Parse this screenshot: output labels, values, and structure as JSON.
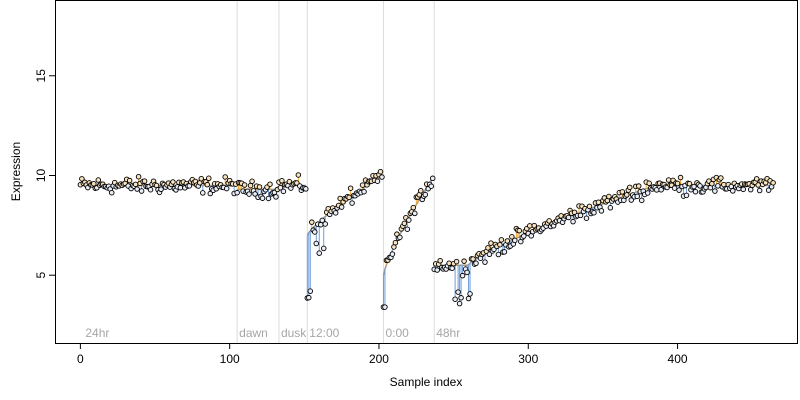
{
  "chart_data": {
    "type": "scatter",
    "xlabel": "Sample index",
    "ylabel": "Expression",
    "xlim": [
      -17,
      480
    ],
    "ylim": [
      1.6,
      18.8
    ],
    "x_ticks": [
      0,
      100,
      200,
      300,
      400
    ],
    "y_ticks": [
      5,
      10,
      15
    ],
    "grid": false,
    "colors": {
      "fitted": "#999999",
      "above": "#f5a623",
      "below": "#6e9bd8",
      "phase_line": "#dcdcdc",
      "phase_text": "#a6a6a6"
    },
    "phases": [
      {
        "label": "24hr",
        "x": 2,
        "line": false
      },
      {
        "label": "dawn",
        "x": 105,
        "line": true
      },
      {
        "label": "dusk",
        "x": 133,
        "line": true
      },
      {
        "label": "12:00",
        "x": 152,
        "line": true
      },
      {
        "label": "0:00",
        "x": 203,
        "line": true
      },
      {
        "label": "48hr",
        "x": 237,
        "line": true
      }
    ],
    "segments": [
      {
        "x0": 0,
        "x1": 105,
        "mean": 9.5
      },
      {
        "x0": 105,
        "x1": 133,
        "mean": 9.3
      },
      {
        "x0": 133,
        "x1": 152,
        "mean": 9.5
      },
      {
        "x0": 152,
        "x1": 203,
        "mean": [
          7.0,
          10.0
        ]
      },
      {
        "x0": 203,
        "x1": 237,
        "mean": [
          5.0,
          10.0
        ]
      },
      {
        "x0": 237,
        "x1": 465,
        "mean": [
          5.5,
          9.5
        ]
      }
    ]
  }
}
